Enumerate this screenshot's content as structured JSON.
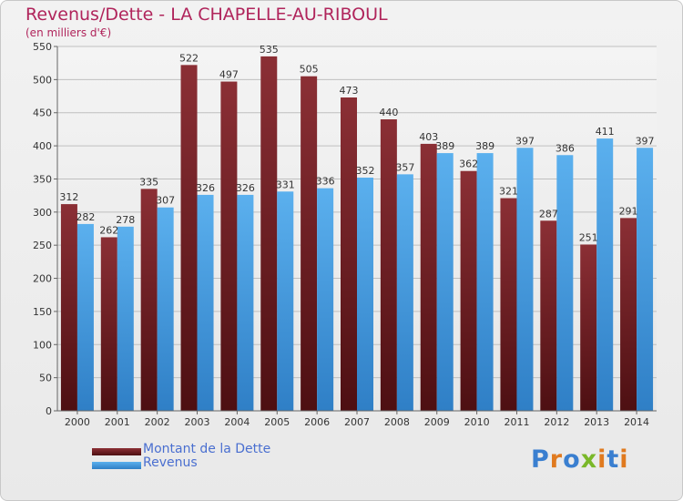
{
  "header": {
    "title": "Revenus/Dette - LA CHAPELLE-AU-RIBOUL",
    "subtitle": "(en milliers d'€)"
  },
  "colors": {
    "debt": "#7e2a2f",
    "revenue": "#4ea3e6",
    "title": "#b0245b",
    "legend_text": "#4a6fd0"
  },
  "chart_data": {
    "type": "bar",
    "title": "Revenus/Dette - LA CHAPELLE-AU-RIBOUL",
    "ylabel": "(en milliers d'€)",
    "xlabel": "",
    "categories": [
      "2000",
      "2001",
      "2002",
      "2003",
      "2004",
      "2005",
      "2006",
      "2007",
      "2008",
      "2009",
      "2010",
      "2011",
      "2012",
      "2013",
      "2014"
    ],
    "series": [
      {
        "name": "Montant de la Dette",
        "values": [
          312,
          262,
          335,
          522,
          497,
          535,
          505,
          473,
          440,
          403,
          362,
          321,
          287,
          251,
          291
        ]
      },
      {
        "name": "Revenus",
        "values": [
          282,
          278,
          307,
          326,
          326,
          331,
          336,
          352,
          357,
          389,
          389,
          397,
          386,
          411,
          397
        ]
      }
    ],
    "ylim": [
      0,
      550
    ],
    "yticks": [
      0,
      50,
      100,
      150,
      200,
      250,
      300,
      350,
      400,
      450,
      500,
      550
    ],
    "grid": true,
    "legend": "bottom-left"
  },
  "legend": {
    "items": [
      {
        "label": "Montant de la Dette"
      },
      {
        "label": "Revenus"
      }
    ]
  },
  "logo": {
    "text": "Proxiti",
    "letters": [
      "P",
      "r",
      "o",
      "x",
      "i",
      "t",
      "i"
    ],
    "letter_colors": [
      "#3a7fd0",
      "#e07a1f",
      "#3a7fd0",
      "#7ab829",
      "#e07a1f",
      "#3a7fd0",
      "#e07a1f"
    ]
  }
}
